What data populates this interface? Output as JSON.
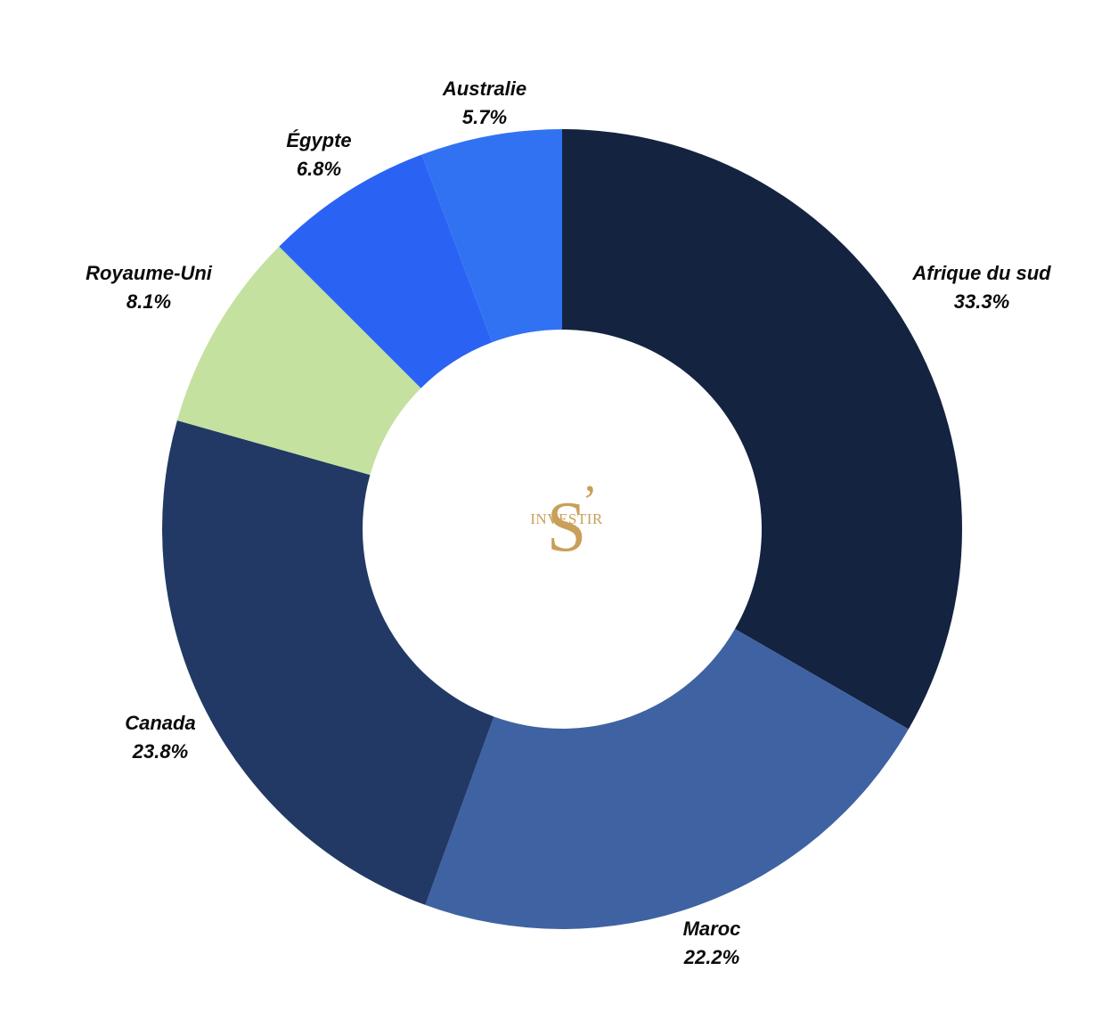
{
  "chart_data": {
    "type": "pie",
    "donut": true,
    "title": "",
    "start": "12 o'clock, clockwise",
    "slices": [
      {
        "label": "Afrique du sud",
        "value": 33.3,
        "value_label": "33.3%",
        "color": "#132340"
      },
      {
        "label": "Maroc",
        "value": 22.2,
        "value_label": "22.2%",
        "color": "#3f62a2"
      },
      {
        "label": "Canada",
        "value": 23.8,
        "value_label": "23.8%",
        "color": "#213964"
      },
      {
        "label": "Royaume-Uni",
        "value": 8.1,
        "value_label": "8.1%",
        "color": "#c4e19f"
      },
      {
        "label": "Égypte",
        "value": 6.8,
        "value_label": "6.8%",
        "color": "#2a63f4"
      },
      {
        "label": "Australie",
        "value": 5.7,
        "value_label": "5.7%",
        "color": "#3172f3"
      }
    ]
  },
  "center_logo": {
    "letter": "S",
    "apostrophe": "’",
    "word": "INVESTIR",
    "color": "#c9a05a"
  }
}
